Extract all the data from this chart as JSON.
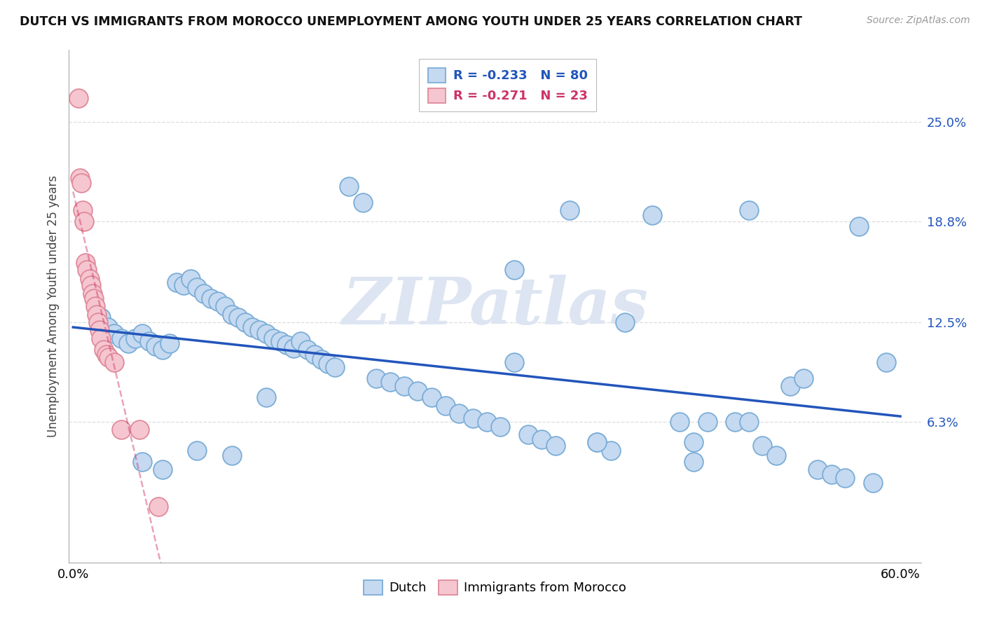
{
  "title": "DUTCH VS IMMIGRANTS FROM MOROCCO UNEMPLOYMENT AMONG YOUTH UNDER 25 YEARS CORRELATION CHART",
  "source": "Source: ZipAtlas.com",
  "ylabel": "Unemployment Among Youth under 25 years",
  "xlim": [
    -0.003,
    0.615
  ],
  "ylim": [
    -0.025,
    0.295
  ],
  "xtick_positions": [
    0.0,
    0.1,
    0.2,
    0.3,
    0.4,
    0.5,
    0.6
  ],
  "xticklabels": [
    "0.0%",
    "",
    "",
    "",
    "",
    "",
    "60.0%"
  ],
  "ytick_positions": [
    0.063,
    0.125,
    0.188,
    0.25
  ],
  "ytick_labels": [
    "6.3%",
    "12.5%",
    "18.8%",
    "25.0%"
  ],
  "dutch_R": -0.233,
  "dutch_N": 80,
  "morocco_R": -0.271,
  "morocco_N": 23,
  "dutch_color": "#c5d9f1",
  "dutch_edge_color": "#7badd6",
  "morocco_color": "#f5c6d0",
  "morocco_edge_color": "#e0899a",
  "dutch_line_color": "#2255bb",
  "morocco_line_color": "#cc3366",
  "watermark_color": "#dde5f2",
  "watermark": "ZIPatlas",
  "grid_color": "#dddddd",
  "dutch_x": [
    0.02,
    0.025,
    0.03,
    0.035,
    0.04,
    0.045,
    0.05,
    0.055,
    0.06,
    0.065,
    0.07,
    0.075,
    0.08,
    0.085,
    0.09,
    0.095,
    0.1,
    0.105,
    0.11,
    0.115,
    0.12,
    0.125,
    0.13,
    0.135,
    0.14,
    0.145,
    0.15,
    0.155,
    0.16,
    0.165,
    0.17,
    0.175,
    0.18,
    0.185,
    0.19,
    0.2,
    0.21,
    0.22,
    0.23,
    0.24,
    0.25,
    0.26,
    0.27,
    0.28,
    0.29,
    0.3,
    0.31,
    0.32,
    0.33,
    0.34,
    0.35,
    0.36,
    0.38,
    0.39,
    0.4,
    0.42,
    0.44,
    0.45,
    0.46,
    0.48,
    0.49,
    0.5,
    0.51,
    0.52,
    0.53,
    0.54,
    0.55,
    0.56,
    0.57,
    0.58,
    0.59,
    0.05,
    0.065,
    0.09,
    0.115,
    0.14,
    0.32,
    0.49,
    0.38,
    0.45
  ],
  "dutch_y": [
    0.128,
    0.122,
    0.118,
    0.115,
    0.112,
    0.115,
    0.118,
    0.113,
    0.11,
    0.108,
    0.112,
    0.15,
    0.148,
    0.152,
    0.147,
    0.143,
    0.14,
    0.138,
    0.135,
    0.13,
    0.128,
    0.125,
    0.122,
    0.12,
    0.118,
    0.115,
    0.113,
    0.111,
    0.109,
    0.113,
    0.108,
    0.105,
    0.102,
    0.099,
    0.097,
    0.21,
    0.2,
    0.09,
    0.088,
    0.085,
    0.082,
    0.078,
    0.073,
    0.068,
    0.065,
    0.063,
    0.06,
    0.158,
    0.055,
    0.052,
    0.048,
    0.195,
    0.05,
    0.045,
    0.125,
    0.192,
    0.063,
    0.05,
    0.063,
    0.063,
    0.195,
    0.048,
    0.042,
    0.085,
    0.09,
    0.033,
    0.03,
    0.028,
    0.185,
    0.025,
    0.1,
    0.038,
    0.033,
    0.045,
    0.042,
    0.078,
    0.1,
    0.063,
    0.05,
    0.038
  ],
  "morocco_x": [
    0.004,
    0.005,
    0.006,
    0.007,
    0.008,
    0.009,
    0.01,
    0.012,
    0.013,
    0.014,
    0.015,
    0.016,
    0.017,
    0.018,
    0.019,
    0.02,
    0.022,
    0.024,
    0.026,
    0.03,
    0.035,
    0.048,
    0.062
  ],
  "morocco_y": [
    0.265,
    0.215,
    0.212,
    0.195,
    0.188,
    0.162,
    0.158,
    0.152,
    0.148,
    0.143,
    0.14,
    0.135,
    0.13,
    0.125,
    0.12,
    0.115,
    0.108,
    0.105,
    0.103,
    0.1,
    0.058,
    0.058,
    0.01
  ]
}
